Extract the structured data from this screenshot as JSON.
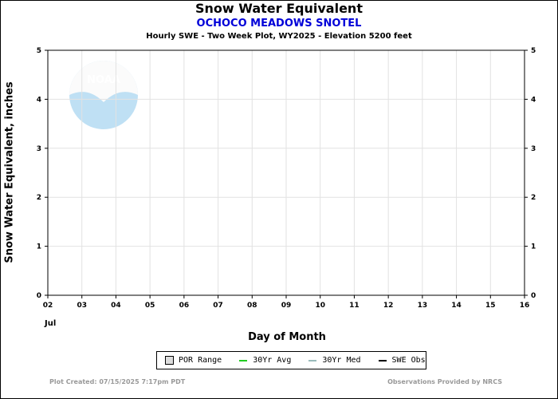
{
  "chart_data": {
    "type": "line",
    "title": "Snow Water Equivalent",
    "subtitle": "OCHOCO MEADOWS SNOTEL",
    "subtitle2": "Hourly SWE - Two Week Plot, WY2025 -  Elevation 5200 feet",
    "xlabel": "Day of Month",
    "ylabel": "Snow Water Equivalent, inches",
    "month_label": "Jul",
    "x_ticks": [
      "02",
      "03",
      "04",
      "05",
      "06",
      "07",
      "08",
      "09",
      "10",
      "11",
      "12",
      "13",
      "14",
      "15",
      "16"
    ],
    "y_ticks": [
      "0",
      "1",
      "2",
      "3",
      "4",
      "5"
    ],
    "ylim": [
      0,
      5
    ],
    "xlim": [
      2,
      16
    ],
    "grid": true,
    "legend_position": "bottom",
    "series": [
      {
        "name": "POR Range",
        "values": []
      },
      {
        "name": "30Yr Avg",
        "values": []
      },
      {
        "name": "30Yr Med",
        "values": []
      },
      {
        "name": "SWE Obs",
        "values": []
      }
    ]
  },
  "legend": {
    "items": [
      {
        "label": "POR Range",
        "kind": "box",
        "color": "#dddddd"
      },
      {
        "label": "30Yr Avg",
        "kind": "line",
        "color": "#22cc22"
      },
      {
        "label": "30Yr Med",
        "kind": "line",
        "color": "#99bbbb"
      },
      {
        "label": "SWE Obs",
        "kind": "line",
        "color": "#000000"
      }
    ]
  },
  "footer": {
    "created": "Plot Created: 07/15/2025 7:17pm PDT",
    "provider": "Observations Provided by NRCS"
  },
  "logo": {
    "text": "NOAA"
  }
}
